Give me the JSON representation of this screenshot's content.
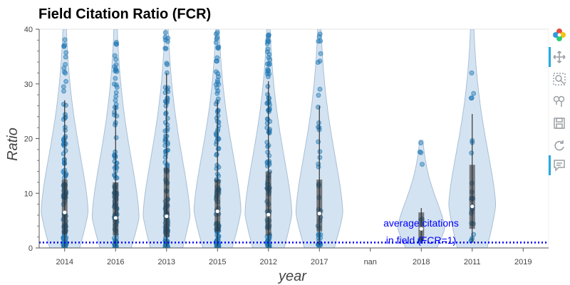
{
  "chart_data": {
    "type": "violin",
    "title": "Field Citation Ratio (FCR)",
    "xlabel": "year",
    "ylabel": "Ratio",
    "ylim": [
      0,
      40
    ],
    "yticks": [
      0,
      10,
      20,
      30,
      40
    ],
    "categories": [
      "2014",
      "2016",
      "2013",
      "2015",
      "2012",
      "2017",
      "nan",
      "2018",
      "2011",
      "2019"
    ],
    "violins": [
      {
        "category": "2014",
        "median": 6.5,
        "q1": 2.5,
        "q3": 12.5,
        "whisker_low": 0.2,
        "whisker_high": 27,
        "max": 40
      },
      {
        "category": "2016",
        "median": 5.5,
        "q1": 2.3,
        "q3": 12,
        "whisker_low": 0.2,
        "whisker_high": 26,
        "max": 40
      },
      {
        "category": "2013",
        "median": 5.8,
        "q1": 2.0,
        "q3": 14.7,
        "whisker_low": 0.2,
        "whisker_high": 32,
        "max": 40
      },
      {
        "category": "2015",
        "median": 6.7,
        "q1": 3.0,
        "q3": 12.5,
        "whisker_low": 0.2,
        "whisker_high": 27,
        "max": 40
      },
      {
        "category": "2012",
        "median": 6.1,
        "q1": 2.3,
        "q3": 14.0,
        "whisker_low": 0.2,
        "whisker_high": 30.5,
        "max": 40
      },
      {
        "category": "2017",
        "median": 6.3,
        "q1": 3.0,
        "q3": 12.5,
        "whisker_low": 0.5,
        "whisker_high": 26,
        "max": 40
      },
      {
        "category": "2018",
        "median": 3.5,
        "q1": 1.3,
        "q3": 6.5,
        "whisker_low": 1.2,
        "whisker_high": 7.3,
        "max": 19.7
      },
      {
        "category": "2011",
        "median": 7.6,
        "q1": 3.5,
        "q3": 15.2,
        "whisker_low": 1.0,
        "whisker_high": 24.5,
        "max": 40
      }
    ],
    "reference_line": {
      "value": 1,
      "label_line1": "average citations",
      "label_line2": "in field (FCR=1)",
      "color": "#0000ff"
    },
    "colors": {
      "violin_fill": "#c6d9ec",
      "violin_stroke": "#a8bfd6",
      "points": "#1f77b4",
      "box": "#333333",
      "median": "#ffffff"
    },
    "grid": false,
    "legend": "none"
  },
  "toolbar": {
    "tools": [
      "bokeh-logo-icon",
      "pan-icon",
      "box-zoom-icon",
      "wheel-zoom-icon",
      "save-icon",
      "reset-icon",
      "hover-icon"
    ]
  }
}
